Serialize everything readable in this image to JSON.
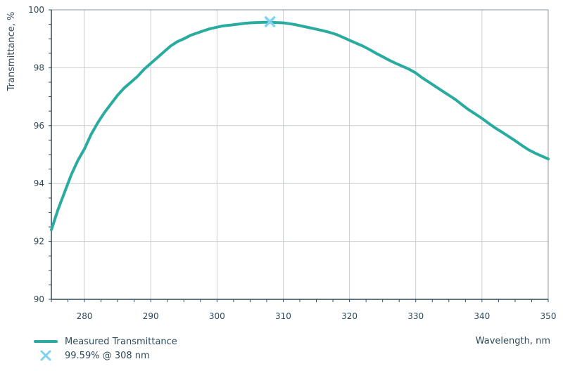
{
  "chart_data": {
    "type": "line",
    "xlabel": "Wavelength, nm",
    "ylabel": "Transmittance, %",
    "xlim": [
      275,
      350
    ],
    "ylim": [
      90,
      100
    ],
    "xticks": [
      280,
      290,
      300,
      310,
      320,
      330,
      340,
      350
    ],
    "yticks": [
      90,
      92,
      94,
      96,
      98,
      100
    ],
    "grid": true,
    "legend_position": "bottom-left",
    "series": [
      {
        "name": "Measured Transmittance",
        "color": "#2aab9f",
        "x": [
          275,
          276,
          277,
          278,
          279,
          280,
          281,
          282,
          283,
          284,
          285,
          286,
          287,
          288,
          289,
          290,
          291,
          292,
          293,
          294,
          295,
          296,
          297,
          298,
          299,
          300,
          301,
          302,
          303,
          304,
          305,
          306,
          307,
          308,
          309,
          310,
          311,
          312,
          313,
          314,
          315,
          316,
          317,
          318,
          319,
          320,
          321,
          322,
          323,
          324,
          325,
          326,
          327,
          328,
          329,
          330,
          331,
          332,
          333,
          334,
          335,
          336,
          337,
          338,
          339,
          340,
          341,
          342,
          343,
          344,
          345,
          346,
          347,
          348,
          349,
          350
        ],
        "y": [
          92.4,
          93.1,
          93.7,
          94.3,
          94.8,
          95.2,
          95.7,
          96.1,
          96.45,
          96.75,
          97.05,
          97.3,
          97.5,
          97.7,
          97.95,
          98.15,
          98.35,
          98.55,
          98.75,
          98.9,
          99.0,
          99.12,
          99.2,
          99.28,
          99.35,
          99.4,
          99.45,
          99.47,
          99.5,
          99.53,
          99.55,
          99.56,
          99.57,
          99.57,
          99.56,
          99.55,
          99.52,
          99.48,
          99.43,
          99.38,
          99.33,
          99.28,
          99.22,
          99.15,
          99.05,
          98.95,
          98.85,
          98.75,
          98.63,
          98.5,
          98.38,
          98.26,
          98.15,
          98.05,
          97.95,
          97.82,
          97.65,
          97.5,
          97.35,
          97.2,
          97.05,
          96.9,
          96.72,
          96.55,
          96.4,
          96.25,
          96.08,
          95.92,
          95.78,
          95.63,
          95.48,
          95.32,
          95.17,
          95.05,
          94.95,
          94.85
        ]
      }
    ],
    "marker": {
      "label": "99.59% @ 308 nm",
      "x": 308,
      "y": 99.59,
      "color": "#7fd3ef"
    }
  }
}
